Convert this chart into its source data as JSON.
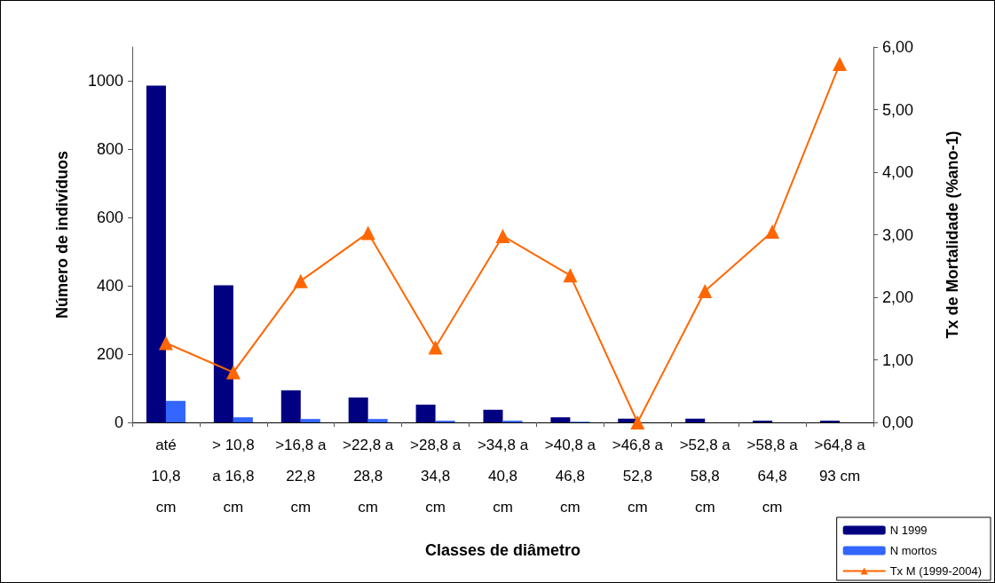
{
  "chart_data": {
    "type": "bar",
    "xlabel": "Classes de diâmetro",
    "ylabel": "Número de indivíduos",
    "y2label": "Tx de Mortalidade (%ano-1)",
    "categories": [
      "até 10,8 cm",
      "> 10,8 a 16,8 cm",
      ">16,8 a 22,8 cm",
      ">22,8 a 28,8 cm",
      ">28,8 a 34,8 cm",
      ">34,8 a 40,8 cm",
      ">40,8 a 46,8 cm",
      ">46,8 a 52,8 cm",
      ">52,8 a 58,8 cm",
      ">58,8 a 64,8 cm",
      ">64,8 a 93 cm"
    ],
    "series": [
      {
        "name": "N 1999",
        "color": "#000080",
        "values": [
          987,
          402,
          94,
          73,
          52,
          37,
          15,
          11,
          11,
          5,
          5
        ]
      },
      {
        "name": "N mortos",
        "color": "#3366ff",
        "values": [
          63,
          15,
          10,
          10,
          5,
          5,
          2,
          0,
          null,
          null,
          null
        ]
      },
      {
        "name": "Tx M (1999-2004)",
        "type": "line",
        "axis": "y2",
        "color": "#ff6600",
        "marker": "triangle",
        "values": [
          1.27,
          0.8,
          2.26,
          3.03,
          1.2,
          2.98,
          2.35,
          0,
          2.1,
          3.05,
          5.73
        ]
      }
    ],
    "ylim": [
      0,
      1100
    ],
    "yticks": [
      0,
      200,
      400,
      600,
      800,
      1000
    ],
    "y2lim": [
      0,
      6
    ],
    "y2ticks": [
      {
        "value": 0,
        "label": "0,00"
      },
      {
        "value": 1,
        "label": "1,00"
      },
      {
        "value": 2,
        "label": "2,00"
      },
      {
        "value": 3,
        "label": "3,00"
      },
      {
        "value": 4,
        "label": "4,00"
      },
      {
        "value": 5,
        "label": "5,00"
      },
      {
        "value": 6,
        "label": "6,00"
      }
    ],
    "grid": false,
    "legend": "bottom right"
  }
}
